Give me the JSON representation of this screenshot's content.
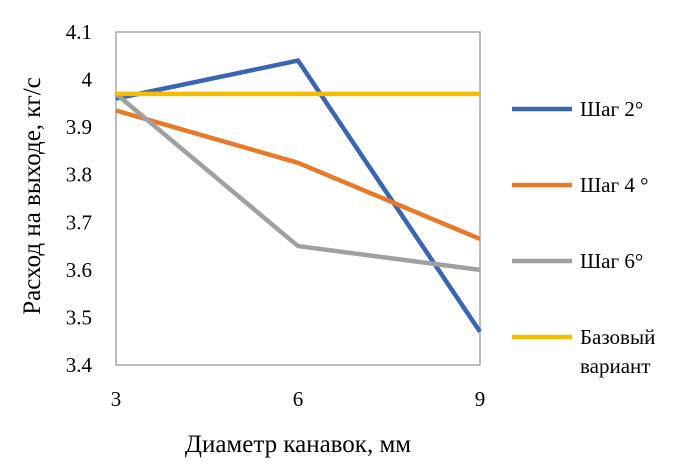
{
  "chart_data": {
    "type": "line",
    "title": "",
    "xlabel": "Диаметр канавок, мм",
    "ylabel": "Расход  на выходе,  кг/с",
    "x": [
      3,
      6,
      9
    ],
    "x_tick_labels": [
      "3",
      "6",
      "9"
    ],
    "y_tick_labels": [
      "3.4",
      "3.5",
      "3.6",
      "3.7",
      "3.8",
      "3.9",
      "4",
      "4.1"
    ],
    "ylim": [
      3.4,
      4.1
    ],
    "xlim": [
      3,
      9
    ],
    "grid": false,
    "legend_position": "right",
    "series": [
      {
        "name": "Шаг 2°",
        "color": "#3a65b5",
        "values": [
          3.96,
          4.04,
          3.47
        ]
      },
      {
        "name": "Шаг 4 °",
        "color": "#e87a27",
        "values": [
          3.935,
          3.825,
          3.665
        ]
      },
      {
        "name": "Шаг 6°",
        "color": "#a0a0a0",
        "values": [
          3.97,
          3.65,
          3.6
        ]
      },
      {
        "name": "Базовый вариант",
        "color": "#f5bc00",
        "values": [
          3.97,
          3.97,
          3.97
        ]
      }
    ]
  }
}
